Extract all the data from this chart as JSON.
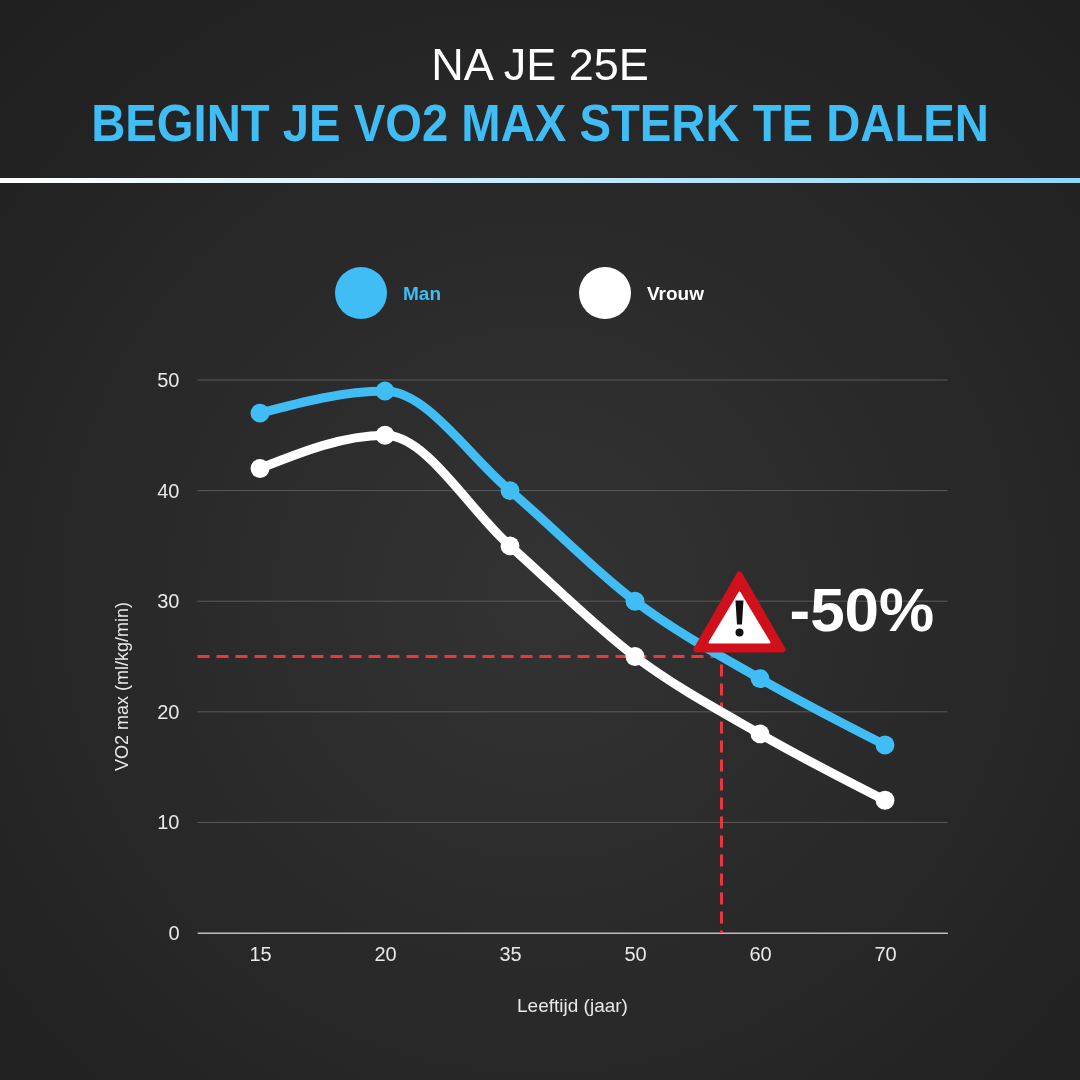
{
  "chart_data": {
    "type": "line",
    "title": "NA JE 25E",
    "subtitle": "BEGINT JE VO2 MAX STERK TE DALEN",
    "xlabel": "Leeftijd (jaar)",
    "ylabel": "VO2 max (ml/kg/min)",
    "categories": [
      "15",
      "20",
      "35",
      "50",
      "60",
      "70"
    ],
    "series": [
      {
        "name": "Man",
        "color": "#40bdf5",
        "values": [
          47,
          49,
          40,
          30,
          23,
          17
        ]
      },
      {
        "name": "Vrouw",
        "color": "#ffffff",
        "values": [
          42,
          45,
          35,
          25,
          18,
          12
        ]
      }
    ],
    "ylim": [
      0,
      50
    ],
    "yticks": [
      0,
      10,
      20,
      30,
      40,
      50
    ],
    "grid": "y",
    "legend": "top",
    "marker": "circle",
    "line_style": "solid",
    "ref_lines": [
      {
        "axis": "y",
        "value": 25,
        "color": "#e8383d",
        "line_style": "dashed"
      }
    ],
    "annotations": [
      "-50%"
    ]
  }
}
